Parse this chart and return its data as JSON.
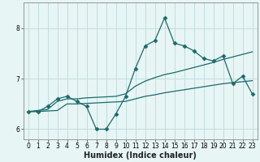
{
  "title": "",
  "xlabel": "Humidex (Indice chaleur)",
  "x_data": [
    0,
    1,
    2,
    3,
    4,
    5,
    6,
    7,
    8,
    9,
    10,
    11,
    12,
    13,
    14,
    15,
    16,
    17,
    18,
    19,
    20,
    21,
    22,
    23
  ],
  "y_main": [
    6.35,
    6.35,
    6.45,
    6.6,
    6.65,
    6.55,
    6.45,
    6.0,
    6.0,
    6.3,
    6.65,
    7.2,
    7.65,
    7.75,
    8.2,
    7.7,
    7.65,
    7.55,
    7.4,
    7.35,
    7.45,
    6.9,
    7.05,
    6.7
  ],
  "y_upper": [
    6.35,
    6.37,
    6.39,
    6.55,
    6.6,
    6.6,
    6.62,
    6.63,
    6.64,
    6.65,
    6.7,
    6.85,
    6.95,
    7.02,
    7.08,
    7.12,
    7.17,
    7.22,
    7.27,
    7.32,
    7.38,
    7.43,
    7.48,
    7.53
  ],
  "y_lower": [
    6.35,
    6.35,
    6.36,
    6.37,
    6.5,
    6.5,
    6.51,
    6.52,
    6.53,
    6.54,
    6.55,
    6.6,
    6.65,
    6.68,
    6.72,
    6.75,
    6.78,
    6.81,
    6.84,
    6.87,
    6.9,
    6.92,
    6.94,
    6.96
  ],
  "line_color": "#1a6b6b",
  "bg_color": "#e8f5f5",
  "grid_color": "#c0dede",
  "xlim": [
    -0.5,
    23.5
  ],
  "ylim": [
    5.8,
    8.5
  ],
  "yticks": [
    6,
    7,
    8
  ],
  "xticks": [
    0,
    1,
    2,
    3,
    4,
    5,
    6,
    7,
    8,
    9,
    10,
    11,
    12,
    13,
    14,
    15,
    16,
    17,
    18,
    19,
    20,
    21,
    22,
    23
  ],
  "marker": "D",
  "markersize": 2.5,
  "linewidth": 0.9,
  "tick_fontsize": 5.5,
  "xlabel_fontsize": 7
}
